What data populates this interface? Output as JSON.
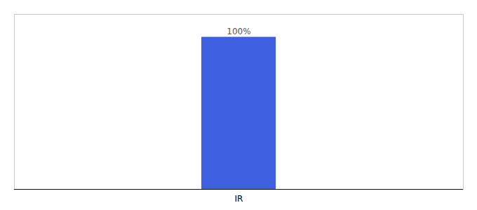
{
  "chart_data": {
    "type": "bar",
    "categories": [
      "IR"
    ],
    "values": [
      100
    ],
    "value_labels": [
      "100%"
    ],
    "data_labels": true,
    "color": "#3d5fe0",
    "ylim": [
      0,
      115
    ],
    "tick_labels": "x"
  }
}
